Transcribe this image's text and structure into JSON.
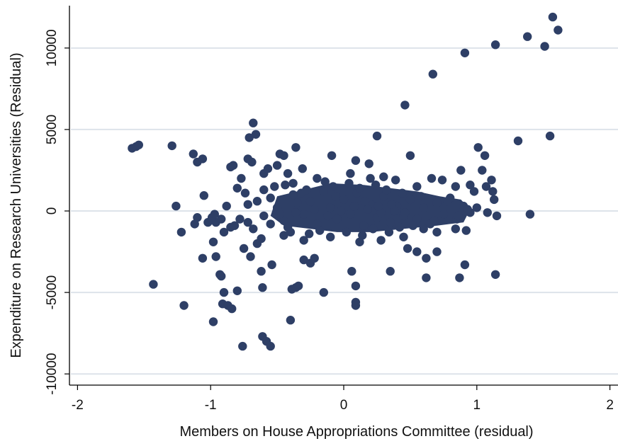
{
  "chart_data": {
    "type": "scatter",
    "xlabel": "Members on House Appropriations Committee (residual)",
    "ylabel": "Expenditure on Research Universities (Residual)",
    "xlim": [
      -2.05,
      2.05
    ],
    "ylim": [
      -10600,
      12600
    ],
    "x_ticks": [
      -2,
      -1,
      0,
      1,
      2
    ],
    "x_tick_labels": [
      "-2",
      "-1",
      "0",
      "1",
      "2"
    ],
    "y_ticks": [
      -10000,
      -5000,
      0,
      5000,
      10000
    ],
    "y_tick_labels": [
      "-10000",
      "-5000",
      "0",
      "5000",
      "10000"
    ],
    "grid": "horizontal",
    "marker_color": "#2e3f66",
    "grid_color": "#dde3ea",
    "points": [
      [
        1.57,
        11900
      ],
      [
        1.61,
        11100
      ],
      [
        1.38,
        10700
      ],
      [
        1.51,
        10100
      ],
      [
        1.14,
        10200
      ],
      [
        0.91,
        9700
      ],
      [
        0.67,
        8400
      ],
      [
        0.46,
        6500
      ],
      [
        1.31,
        4300
      ],
      [
        1.55,
        4600
      ],
      [
        1.4,
        -200
      ],
      [
        0.25,
        4600
      ],
      [
        -0.68,
        5400
      ],
      [
        -0.66,
        4700
      ],
      [
        -0.71,
        4500
      ],
      [
        -1.59,
        3850
      ],
      [
        -1.56,
        3950
      ],
      [
        -1.54,
        4050
      ],
      [
        -1.29,
        4000
      ],
      [
        -1.13,
        3500
      ],
      [
        -1.1,
        3000
      ],
      [
        -1.06,
        3200
      ],
      [
        -0.85,
        2700
      ],
      [
        -0.83,
        2800
      ],
      [
        -0.69,
        3000
      ],
      [
        -0.72,
        3200
      ],
      [
        -0.48,
        3500
      ],
      [
        -0.45,
        3400
      ],
      [
        -0.36,
        3900
      ],
      [
        -0.09,
        3400
      ],
      [
        0.09,
        3100
      ],
      [
        0.19,
        2900
      ],
      [
        0.5,
        3400
      ],
      [
        1.01,
        3900
      ],
      [
        1.06,
        3400
      ],
      [
        1.11,
        1900
      ],
      [
        1.12,
        1200
      ],
      [
        1.13,
        700
      ],
      [
        1.07,
        1500
      ],
      [
        1.04,
        2500
      ],
      [
        -1.26,
        300
      ],
      [
        -1.22,
        -1300
      ],
      [
        -1.05,
        950
      ],
      [
        -1.06,
        -2900
      ],
      [
        -0.96,
        -2800
      ],
      [
        -0.93,
        -3900
      ],
      [
        -0.92,
        -4000
      ],
      [
        -0.9,
        -5000
      ],
      [
        -0.91,
        -5700
      ],
      [
        -0.87,
        -5800
      ],
      [
        -0.84,
        -6000
      ],
      [
        -0.8,
        -4900
      ],
      [
        -1.43,
        -4500
      ],
      [
        -1.2,
        -5800
      ],
      [
        -0.98,
        -6800
      ],
      [
        -0.76,
        -8300
      ],
      [
        -0.61,
        -7700
      ],
      [
        -0.58,
        -8000
      ],
      [
        -0.55,
        -8300
      ],
      [
        -0.61,
        -4700
      ],
      [
        -0.62,
        -3700
      ],
      [
        -0.54,
        -3300
      ],
      [
        -0.4,
        -6700
      ],
      [
        -0.39,
        -4800
      ],
      [
        -0.36,
        -4700
      ],
      [
        -0.34,
        -4600
      ],
      [
        -0.15,
        -5000
      ],
      [
        0.06,
        -3700
      ],
      [
        0.09,
        -4600
      ],
      [
        0.09,
        -5600
      ],
      [
        0.09,
        -5800
      ],
      [
        0.35,
        -3700
      ],
      [
        0.62,
        -4100
      ],
      [
        0.87,
        -4100
      ],
      [
        0.91,
        -3300
      ],
      [
        1.14,
        -3900
      ],
      [
        0.7,
        -2500
      ],
      [
        0.62,
        -2900
      ],
      [
        0.55,
        -2500
      ],
      [
        0.48,
        -2300
      ],
      [
        -0.22,
        -2900
      ],
      [
        -0.25,
        -3200
      ],
      [
        -0.3,
        -3000
      ],
      [
        -0.62,
        -1700
      ],
      [
        -0.7,
        -2800
      ],
      [
        -0.75,
        -2300
      ],
      [
        -0.82,
        -900
      ],
      [
        -0.96,
        -700
      ],
      [
        -0.99,
        -400
      ],
      [
        -0.98,
        -1900
      ],
      [
        -0.9,
        -1300
      ],
      [
        -0.8,
        1400
      ],
      [
        -0.77,
        2000
      ],
      [
        -0.74,
        1100
      ],
      [
        -0.6,
        2300
      ],
      [
        -0.57,
        2600
      ],
      [
        -0.5,
        2800
      ],
      [
        -0.42,
        2300
      ],
      [
        -0.38,
        1700
      ],
      [
        -0.31,
        2600
      ],
      [
        -0.2,
        2000
      ],
      [
        0.05,
        2300
      ],
      [
        0.2,
        2000
      ],
      [
        0.3,
        2100
      ],
      [
        0.39,
        1900
      ],
      [
        0.55,
        1500
      ],
      [
        0.66,
        2000
      ],
      [
        0.74,
        1900
      ],
      [
        0.84,
        1500
      ],
      [
        0.88,
        2500
      ],
      [
        0.95,
        1600
      ],
      [
        0.98,
        1200
      ],
      [
        1.0,
        200
      ],
      [
        1.08,
        -100
      ],
      [
        1.15,
        -300
      ],
      [
        0.92,
        -1200
      ],
      [
        0.84,
        -1100
      ],
      [
        0.7,
        -1300
      ],
      [
        0.6,
        -1100
      ],
      [
        -0.68,
        -1100
      ],
      [
        -0.65,
        -2000
      ],
      [
        -0.45,
        -1500
      ],
      [
        -0.3,
        -1800
      ],
      [
        -0.1,
        -1600
      ],
      [
        0.12,
        -1900
      ],
      [
        0.28,
        -1800
      ],
      [
        0.45,
        -1600
      ],
      [
        -0.5,
        200
      ],
      [
        -0.6,
        -300
      ],
      [
        -0.72,
        400
      ],
      [
        -0.55,
        800
      ],
      [
        -0.45,
        -600
      ],
      [
        -0.38,
        1000
      ],
      [
        -0.3,
        -200
      ],
      [
        -0.25,
        600
      ],
      [
        -0.2,
        -800
      ],
      [
        -0.15,
        1200
      ],
      [
        -0.1,
        200
      ],
      [
        -0.05,
        -500
      ],
      [
        0.0,
        700
      ],
      [
        0.05,
        -200
      ],
      [
        0.1,
        1100
      ],
      [
        0.15,
        -900
      ],
      [
        0.2,
        400
      ],
      [
        0.25,
        -400
      ],
      [
        0.3,
        900
      ],
      [
        0.35,
        -700
      ],
      [
        0.4,
        300
      ],
      [
        0.45,
        -300
      ],
      [
        0.5,
        700
      ],
      [
        0.55,
        -500
      ],
      [
        0.6,
        200
      ],
      [
        0.65,
        -800
      ],
      [
        0.7,
        500
      ],
      [
        0.75,
        -200
      ],
      [
        0.8,
        800
      ],
      [
        0.85,
        -500
      ],
      [
        0.9,
        300
      ],
      [
        0.95,
        -100
      ],
      [
        -0.35,
        500
      ],
      [
        -0.28,
        1300
      ],
      [
        -0.18,
        -1200
      ],
      [
        -0.08,
        1500
      ],
      [
        0.02,
        -1300
      ],
      [
        0.12,
        1400
      ],
      [
        0.22,
        -1100
      ],
      [
        0.32,
        1300
      ],
      [
        0.42,
        -1000
      ],
      [
        -0.42,
        -1000
      ],
      [
        -0.32,
        1100
      ],
      [
        -0.12,
        -300
      ],
      [
        0.08,
        300
      ],
      [
        0.18,
        100
      ],
      [
        0.28,
        -100
      ],
      [
        0.38,
        0
      ],
      [
        -0.02,
        0
      ],
      [
        -0.22,
        100
      ],
      [
        -0.48,
        -200
      ],
      [
        -0.55,
        -800
      ],
      [
        -0.65,
        600
      ],
      [
        -0.78,
        -500
      ],
      [
        -0.85,
        -1000
      ],
      [
        -0.92,
        -500
      ],
      [
        -1.02,
        -700
      ],
      [
        -1.1,
        -400
      ],
      [
        -1.12,
        -800
      ],
      [
        -0.97,
        -200
      ],
      [
        -0.88,
        300
      ],
      [
        -0.72,
        -700
      ],
      [
        -0.6,
        1300
      ],
      [
        -0.52,
        1500
      ],
      [
        -0.44,
        1600
      ],
      [
        -0.26,
        -1400
      ],
      [
        -0.14,
        1800
      ],
      [
        0.04,
        1700
      ],
      [
        0.14,
        -1500
      ],
      [
        0.24,
        1600
      ],
      [
        0.34,
        -1300
      ],
      [
        0.44,
        1100
      ],
      [
        0.52,
        -900
      ],
      [
        0.58,
        900
      ],
      [
        0.68,
        -600
      ],
      [
        0.78,
        600
      ],
      [
        0.86,
        -300
      ],
      [
        0.93,
        100
      ],
      [
        -0.4,
        -1300
      ],
      [
        -0.36,
        -100
      ],
      [
        -0.06,
        900
      ],
      [
        0.16,
        600
      ],
      [
        0.26,
        300
      ],
      [
        0.36,
        400
      ],
      [
        0.46,
        -100
      ]
    ]
  }
}
